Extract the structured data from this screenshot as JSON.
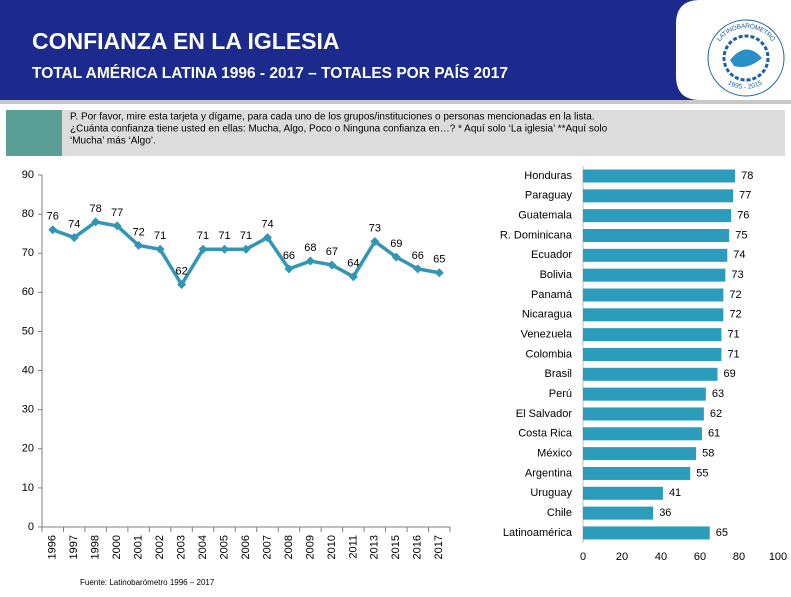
{
  "header": {
    "title": "CONFIANZA EN LA IGLESIA",
    "subtitle": "TOTAL AMÉRICA LATINA 1996 - 2017 – TOTALES POR PAÍS 2017"
  },
  "logo": {
    "name": "LATINOBARÓMETRO",
    "years": "1995 - 2015"
  },
  "question": [
    "P. Por favor, mire esta tarjeta y dígame, para cada uno de los grupos/instituciones o personas mencionadas en la lista.",
    "¿Cuánta confianza tiene usted en ellas: Mucha, Algo, Poco o Ninguna confianza en…? * Aquí solo ‘La iglesia’  **Aquí solo",
    "‘Mucha’ más ‘Algo’."
  ],
  "source": "Fuente: Latinobarómetro 1996 – 2017",
  "chart_data": [
    {
      "type": "line",
      "categories": [
        "1996",
        "1997",
        "1998",
        "2000",
        "2001",
        "2002",
        "2003",
        "2004",
        "2005",
        "2006",
        "2007",
        "2008",
        "2009",
        "2010",
        "2011",
        "2013",
        "2015",
        "2016",
        "2017"
      ],
      "values": [
        76,
        74,
        78,
        77,
        72,
        71,
        62,
        71,
        71,
        71,
        74,
        66,
        68,
        67,
        64,
        73,
        69,
        66,
        65
      ],
      "color": "#3196b4",
      "ylim": [
        0,
        90
      ],
      "yticks": [
        0,
        10,
        20,
        30,
        40,
        50,
        60,
        70,
        80,
        90
      ]
    },
    {
      "type": "hbar",
      "categories": [
        "Honduras",
        "Paraguay",
        "Guatemala",
        "R. Dominicana",
        "Ecuador",
        "Bolivia",
        "Panamá",
        "Nicaragua",
        "Venezuela",
        "Colombia",
        "Brasil",
        "Perú",
        "El Salvador",
        "Costa Rica",
        "México",
        "Argentina",
        "Uruguay",
        "Chile",
        "Latinoamérica"
      ],
      "values": [
        78,
        77,
        76,
        75,
        74,
        73,
        72,
        72,
        71,
        71,
        69,
        63,
        62,
        61,
        58,
        55,
        41,
        36,
        65
      ],
      "color": "#2b9cbb",
      "xlim": [
        0,
        100
      ],
      "xticks": [
        0,
        20,
        40,
        60,
        80,
        100
      ]
    }
  ]
}
